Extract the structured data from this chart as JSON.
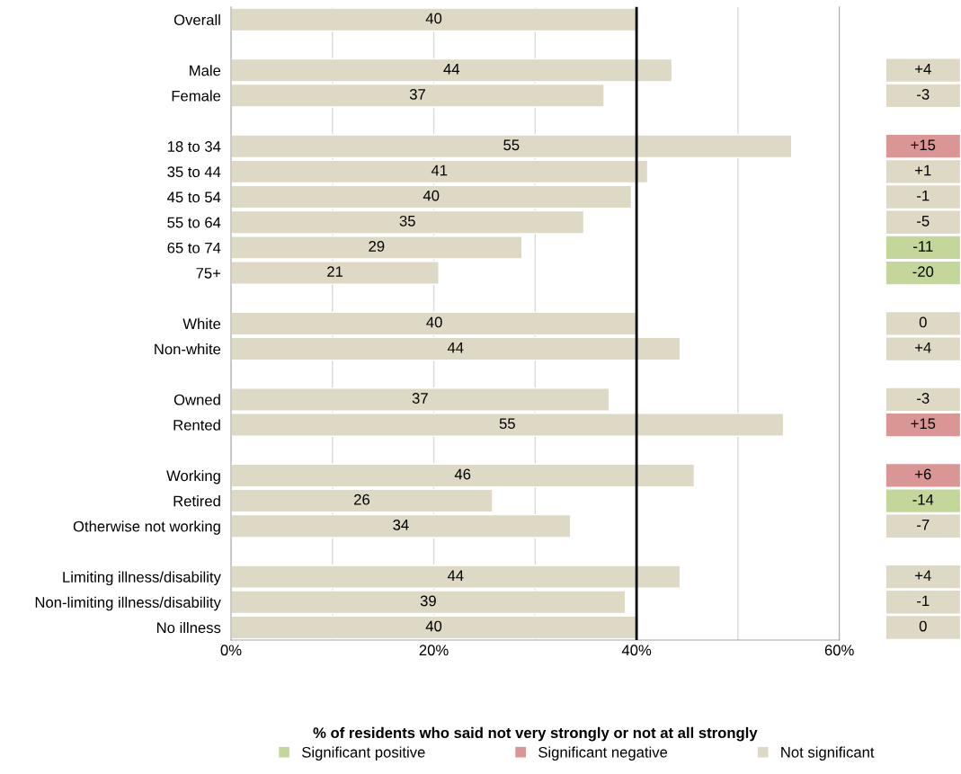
{
  "chart_data": [
    {
      "type": "bar",
      "orientation": "horizontal",
      "xlabel": "% of residents who said not very strongly or not at all strongly",
      "categories": [
        "Overall",
        null,
        "Male",
        "Female",
        null,
        "18 to 34",
        "35 to 44",
        "45 to 54",
        "55 to 64",
        "65 to 74",
        "75+",
        null,
        "White",
        "Non-white",
        null,
        "Owned",
        "Rented",
        null,
        "Working",
        "Retired",
        "Otherwise not working",
        null,
        "Limiting illness/disability",
        "Non-limiting illness/disability",
        "No illness"
      ],
      "values": [
        40.0,
        null,
        43.5,
        36.8,
        null,
        55.3,
        41.1,
        39.5,
        34.8,
        28.7,
        20.5,
        null,
        40.1,
        44.3,
        null,
        37.3,
        54.5,
        null,
        45.7,
        25.8,
        33.5,
        null,
        44.3,
        38.9,
        40.0
      ],
      "value_labels": [
        "40",
        null,
        "44",
        "37",
        null,
        "55",
        "41",
        "40",
        "35",
        "29",
        "21",
        null,
        "40",
        "44",
        null,
        "37",
        "55",
        null,
        "46",
        "26",
        "34",
        null,
        "44",
        "39",
        "40"
      ],
      "color": "#ddd9c4",
      "xlim": [
        0,
        60
      ],
      "xticks": [
        {
          "value": 0,
          "label": "0%"
        },
        {
          "value": 10,
          "label": null
        },
        {
          "value": 20,
          "label": "20%"
        },
        {
          "value": 30,
          "label": null
        },
        {
          "value": 40,
          "label": "40%"
        },
        {
          "value": 50,
          "label": null
        },
        {
          "value": 60,
          "label": "60%"
        }
      ],
      "grid": "x",
      "ref_lines": [
        {
          "axis": "x",
          "value": 40,
          "color": "#000000"
        }
      ]
    },
    {
      "type": "other",
      "annotations": [
        "+4",
        "-3",
        "+15",
        "+1",
        "-1",
        "-5",
        "-11",
        "-20",
        "0",
        "+4",
        "-3",
        "+15",
        "+6",
        "-14",
        "-7",
        "+4",
        "-1",
        "0"
      ],
      "colors": [
        "#ddd9c4",
        "#ddd9c4",
        "#da9694",
        "#ddd9c4",
        "#ddd9c4",
        "#ddd9c4",
        "#c4d79b",
        "#c4d79b",
        "#ddd9c4",
        "#ddd9c4",
        "#ddd9c4",
        "#da9694",
        "#da9694",
        "#c4d79b",
        "#ddd9c4",
        "#ddd9c4",
        "#ddd9c4",
        "#ddd9c4"
      ],
      "series": [
        {
          "name": "Significant positive",
          "color": "#c4d79b"
        },
        {
          "name": "Significant negative",
          "color": "#da9694"
        },
        {
          "name": "Not significant",
          "color": "#ddd9c4"
        }
      ],
      "legend": "bottom"
    }
  ]
}
